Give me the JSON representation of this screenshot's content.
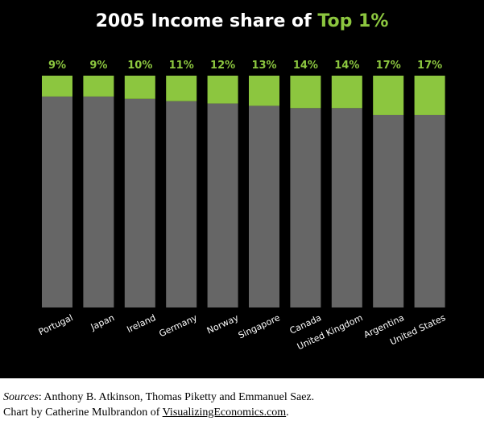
{
  "title_main": "2005 Income share of ",
  "title_accent": "Top 1%",
  "colors": {
    "background": "#000000",
    "bar": "#666666",
    "top_share": "#8cc63f",
    "label": "#ffffff"
  },
  "chart_data": {
    "type": "bar",
    "stacked": true,
    "title": "2005 Income share of Top 1%",
    "categories": [
      "Portugal",
      "Japan",
      "Ireland",
      "Germany",
      "Norway",
      "Singapore",
      "Canada",
      "United Kingdom",
      "Argentina",
      "United States"
    ],
    "values": [
      9,
      9,
      10,
      11,
      12,
      13,
      14,
      14,
      17,
      17
    ],
    "value_labels": [
      "9%",
      "9%",
      "10%",
      "11%",
      "12%",
      "13%",
      "14%",
      "14%",
      "17%",
      "17%"
    ],
    "ylim": [
      0,
      100
    ],
    "grid": false,
    "legend": "none"
  },
  "footer": {
    "sources_label": "Sources",
    "sources_text": ": Anthony B. Atkinson, Thomas Piketty and Emmanuel Saez.",
    "credit_prefix": "Chart by Catherine Mulbrandon of ",
    "credit_link": "VisualizingEconomics.com",
    "credit_suffix": "."
  }
}
